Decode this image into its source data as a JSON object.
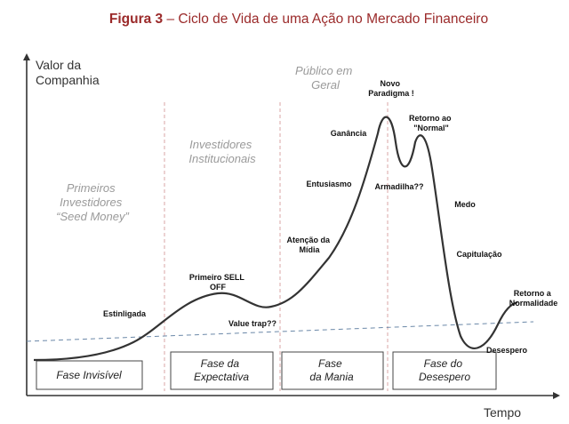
{
  "title": {
    "prefix": "Figura  3",
    "rest": " – Ciclo de Vida de uma Ação no Mercado Financeiro"
  },
  "chart_data": {
    "type": "line",
    "title": "Figura  3 – Ciclo de Vida de uma Ação no Mercado Financeiro",
    "ylabel": [
      "Valor da",
      "Companhia"
    ],
    "xlabel": "Tempo",
    "curve_color": "#333333",
    "trend_color": "#6b88a8",
    "divider_color": "#d9a5a5",
    "phase_labels": [
      {
        "lines": [
          "Primeiros",
          "Investidores",
          "“Seed Money”"
        ]
      },
      {
        "lines": [
          "Investidores",
          "Institucionais"
        ]
      },
      {
        "lines": [
          "Público em",
          "Geral"
        ]
      }
    ],
    "annotations": [
      {
        "lines": [
          "Estinligada"
        ]
      },
      {
        "lines": [
          "Primeiro SELL",
          "OFF"
        ]
      },
      {
        "lines": [
          "Value trap??"
        ]
      },
      {
        "lines": [
          "Atenção da",
          "Mídia"
        ]
      },
      {
        "lines": [
          "Entusiasmo"
        ]
      },
      {
        "lines": [
          "Ganância"
        ]
      },
      {
        "lines": [
          "Novo",
          "Paradigma !"
        ]
      },
      {
        "lines": [
          "Armadilha??"
        ]
      },
      {
        "lines": [
          "Retorno ao",
          "\"Normal\""
        ]
      },
      {
        "lines": [
          "Medo"
        ]
      },
      {
        "lines": [
          "Capitulação"
        ]
      },
      {
        "lines": [
          "Desespero"
        ]
      },
      {
        "lines": [
          "Retorno a",
          "Normalidade"
        ]
      }
    ],
    "stages": [
      {
        "lines": [
          "Fase Invisível"
        ]
      },
      {
        "lines": [
          "Fase da",
          "Expectativa"
        ]
      },
      {
        "lines": [
          "Fase",
          "da Mania"
        ]
      },
      {
        "lines": [
          "Fase do",
          "Desespero"
        ]
      }
    ]
  }
}
